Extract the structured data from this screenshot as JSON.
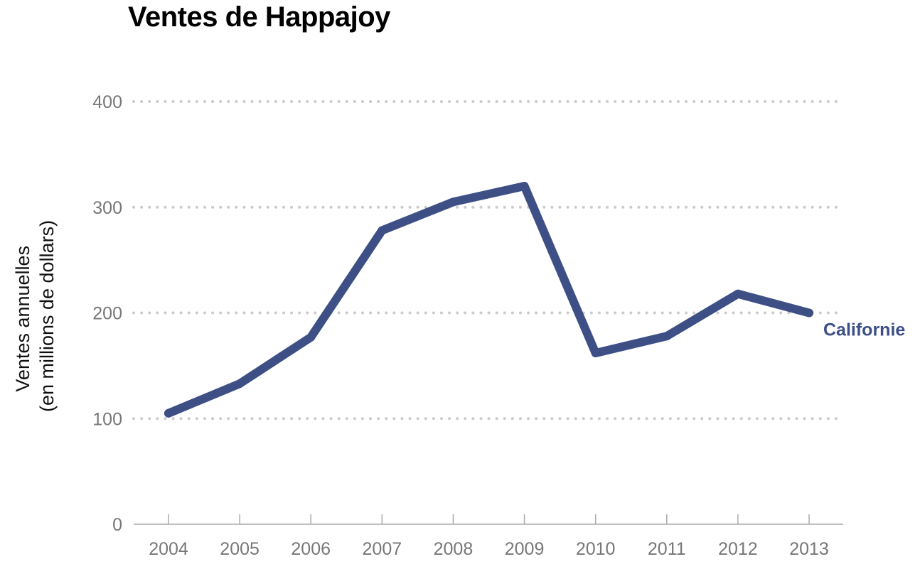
{
  "chart_data": {
    "type": "line",
    "title": "Ventes de Happajoy",
    "xlabel": "",
    "ylabel": [
      "Ventes annuelles",
      "(en millions de dollars)"
    ],
    "x": [
      "2004",
      "2005",
      "2006",
      "2007",
      "2008",
      "2009",
      "2010",
      "2011",
      "2012",
      "2013"
    ],
    "yticks": [
      "0",
      "100",
      "200",
      "300",
      "400"
    ],
    "ylim": [
      0,
      400
    ],
    "grid": true,
    "legend": "none",
    "series": [
      {
        "name": "Californie",
        "values": [
          105,
          133,
          177,
          278,
          305,
          320,
          162,
          178,
          218,
          200
        ],
        "color": "#3d4f85"
      }
    ],
    "colors": {
      "grid": "#cccccc",
      "axis": "#aaaaaa",
      "ticks": "#777777"
    }
  }
}
